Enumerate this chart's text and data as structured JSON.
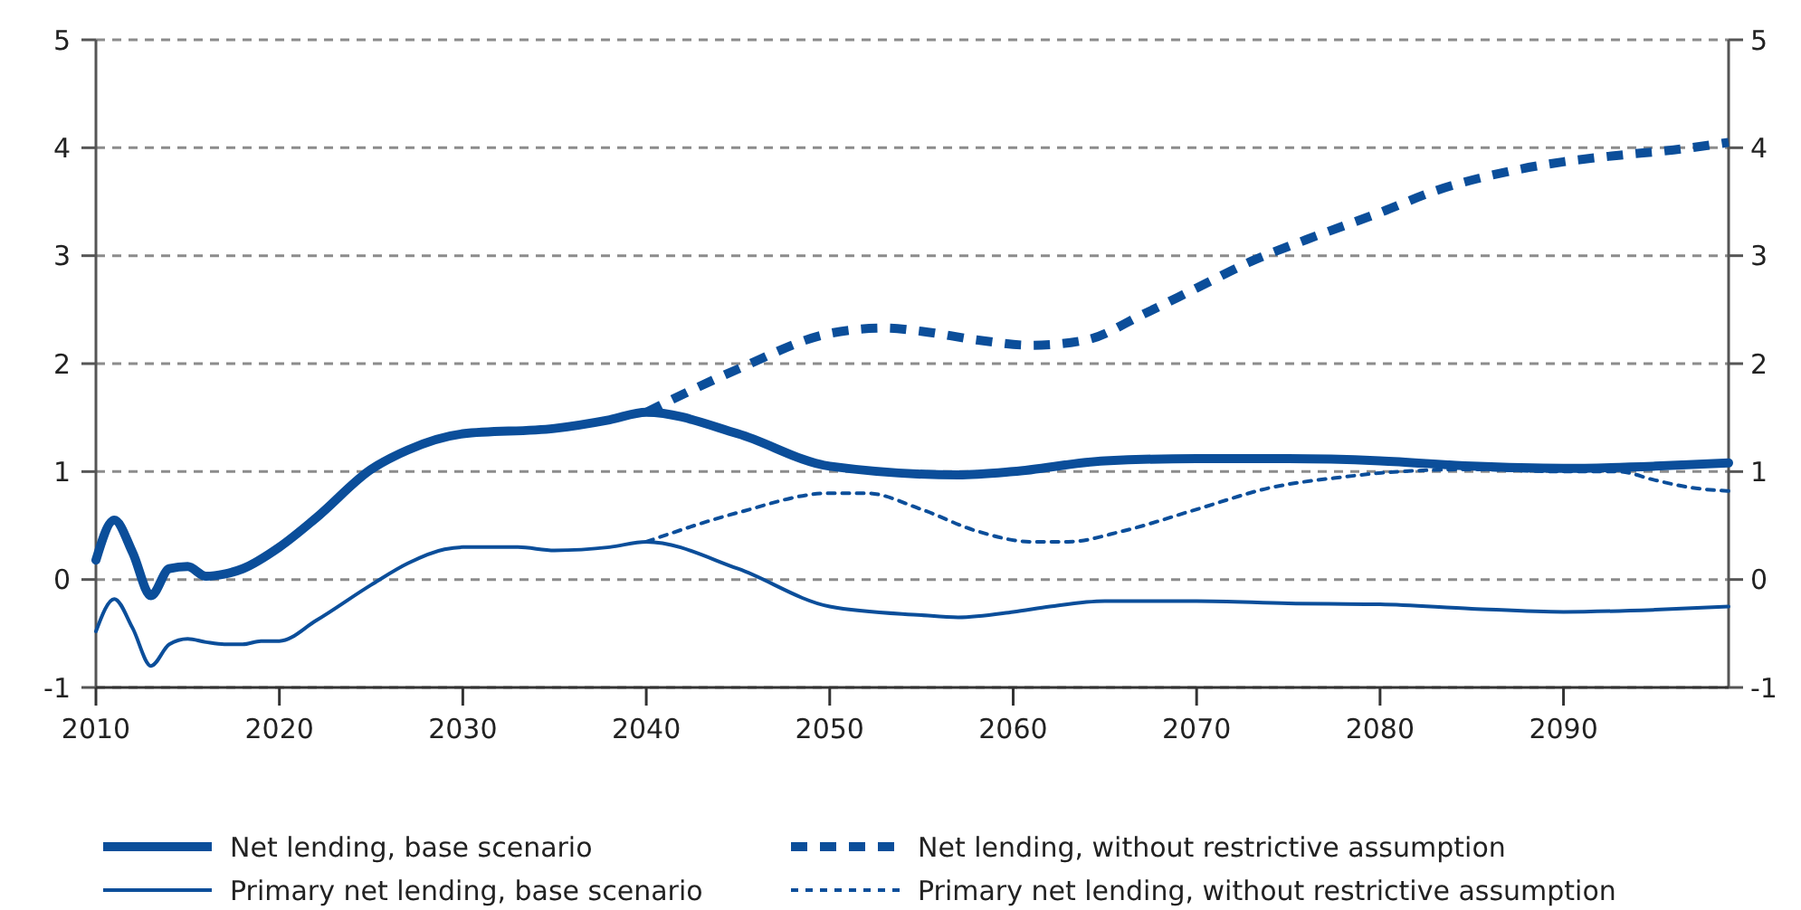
{
  "chart_data": {
    "type": "line",
    "xlim": [
      2010,
      2099
    ],
    "xticks": [
      2010,
      2020,
      2030,
      2040,
      2050,
      2060,
      2070,
      2080,
      2090
    ],
    "ylim": [
      -1,
      5
    ],
    "yticks": [
      -1,
      0,
      1,
      2,
      3,
      4,
      5
    ],
    "y2lim": [
      -1,
      5
    ],
    "y2ticks": [
      -1,
      0,
      1,
      2,
      3,
      4,
      5
    ],
    "grid": "y",
    "legend": "bottom",
    "series": [
      {
        "name": "Net lending, base scenario",
        "color": "#0b4e9a",
        "line_style": "solid",
        "x": [
          2010,
          2011,
          2012,
          2013,
          2014,
          2015,
          2016,
          2017,
          2018,
          2020,
          2022,
          2025,
          2027,
          2030,
          2035,
          2038,
          2040,
          2045,
          2050,
          2057,
          2060,
          2065,
          2070,
          2075,
          2080,
          2085,
          2090,
          2095,
          2099
        ],
        "values": [
          0.18,
          0.55,
          0.25,
          -0.15,
          0.1,
          0.12,
          0.03,
          0.05,
          0.1,
          0.3,
          0.57,
          1.02,
          1.2,
          1.35,
          1.4,
          1.48,
          1.55,
          1.35,
          1.05,
          0.97,
          1.0,
          1.1,
          1.12,
          1.12,
          1.1,
          1.05,
          1.03,
          1.05,
          1.08
        ]
      },
      {
        "name": "Net lending, without restrictive assumption",
        "color": "#0b4e9a",
        "line_style": "dashed",
        "x": [
          2040,
          2045,
          2050,
          2053,
          2055,
          2058,
          2061,
          2064,
          2067,
          2070,
          2073,
          2076,
          2080,
          2083,
          2087,
          2090,
          2093,
          2096,
          2099
        ],
        "values": [
          1.55,
          1.95,
          2.28,
          2.33,
          2.3,
          2.22,
          2.17,
          2.22,
          2.45,
          2.7,
          2.95,
          3.15,
          3.4,
          3.6,
          3.78,
          3.87,
          3.93,
          3.98,
          4.05
        ]
      },
      {
        "name": "Primary net lending, base scenario",
        "color": "#0b4e9a",
        "line_style": "solid",
        "x": [
          2010,
          2011,
          2012,
          2013,
          2014,
          2015,
          2016,
          2017,
          2018,
          2019,
          2020,
          2022,
          2025,
          2027,
          2029,
          2030,
          2033,
          2035,
          2038,
          2040,
          2045,
          2050,
          2055,
          2057,
          2060,
          2062,
          2065,
          2070,
          2075,
          2080,
          2085,
          2090,
          2095,
          2099
        ],
        "values": [
          -0.48,
          -0.18,
          -0.45,
          -0.8,
          -0.6,
          -0.55,
          -0.58,
          -0.6,
          -0.6,
          -0.57,
          -0.57,
          -0.38,
          -0.05,
          0.15,
          0.28,
          0.3,
          0.3,
          0.27,
          0.3,
          0.35,
          0.1,
          -0.25,
          -0.33,
          -0.35,
          -0.3,
          -0.25,
          -0.2,
          -0.2,
          -0.22,
          -0.23,
          -0.27,
          -0.3,
          -0.28,
          -0.25
        ]
      },
      {
        "name": "Primary net lending, without restrictive assumption",
        "color": "#0b4e9a",
        "line_style": "dashed",
        "x": [
          2040,
          2045,
          2050,
          2052,
          2055,
          2058,
          2061,
          2063,
          2066,
          2070,
          2074,
          2078,
          2081,
          2085,
          2090,
          2093,
          2095,
          2097,
          2099
        ],
        "values": [
          0.35,
          0.62,
          0.8,
          0.8,
          0.65,
          0.45,
          0.35,
          0.35,
          0.45,
          0.65,
          0.85,
          0.95,
          1.0,
          1.02,
          1.0,
          1.0,
          0.92,
          0.85,
          0.82
        ]
      }
    ]
  }
}
